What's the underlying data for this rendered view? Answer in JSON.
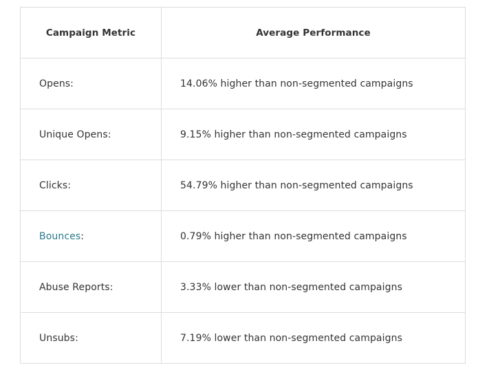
{
  "table": {
    "headers": {
      "metric": "Campaign Metric",
      "performance": "Average Performance"
    },
    "rows": [
      {
        "metric": "Opens:",
        "performance": "14.06% higher than non-segmented campaigns"
      },
      {
        "metric": "Unique Opens:",
        "performance": "9.15% higher than non-segmented campaigns"
      },
      {
        "metric": "Clicks:",
        "performance": "54.79% higher than non-segmented campaigns"
      },
      {
        "metric_link": "Bounces",
        "metric_suffix": ":",
        "performance": "0.79% higher than non-segmented campaigns"
      },
      {
        "metric": "Abuse Reports:",
        "performance": "3.33% lower than non-segmented campaigns"
      },
      {
        "metric": "Unsubs:",
        "performance": "7.19% lower than non-segmented campaigns"
      }
    ]
  },
  "colors": {
    "link": "#2a7a8c",
    "border": "#dcdcdc",
    "text": "#333333"
  }
}
